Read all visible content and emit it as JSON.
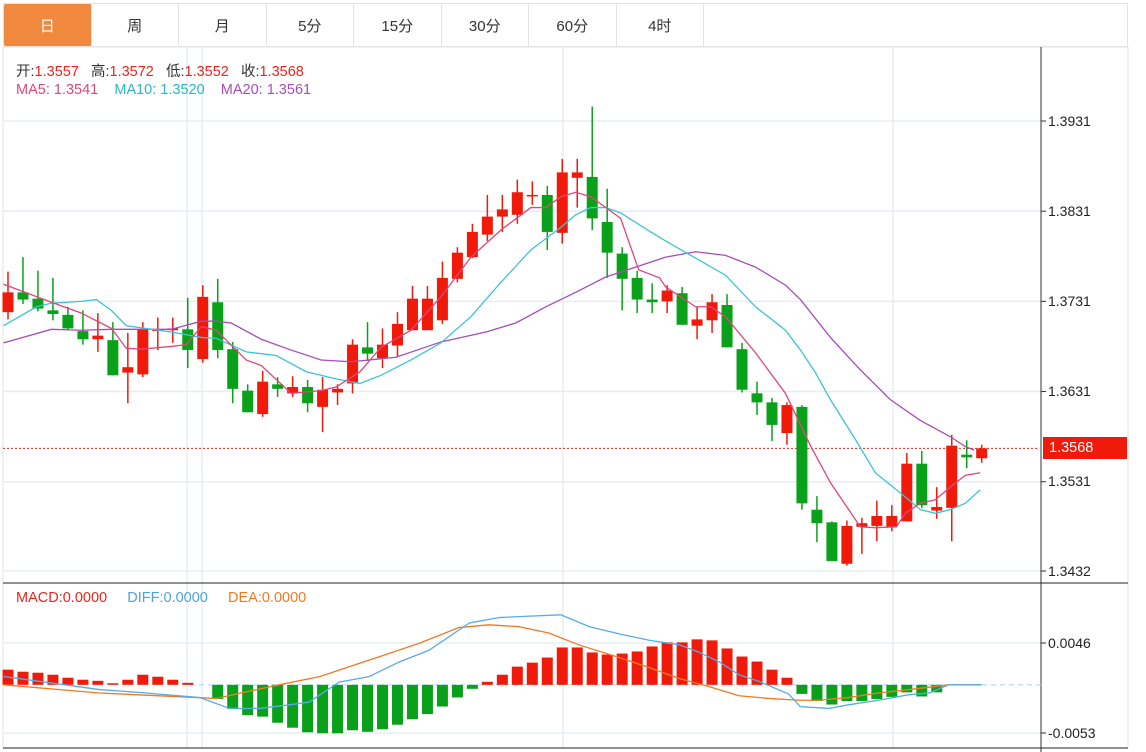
{
  "tabs": [
    {
      "label": "日",
      "active": true
    },
    {
      "label": "周"
    },
    {
      "label": "月"
    },
    {
      "label": "5分"
    },
    {
      "label": "15分"
    },
    {
      "label": "30分"
    },
    {
      "label": "60分"
    },
    {
      "label": "4时"
    }
  ],
  "ohlc_legend": {
    "open_label": "开:",
    "open": "1.3557",
    "high_label": "高:",
    "high": "1.3572",
    "low_label": "低:",
    "low": "1.3552",
    "close_label": "收:",
    "close": "1.3568"
  },
  "ma_legend": {
    "ma5_label": "MA5: ",
    "ma5": "1.3541",
    "ma10_label": "MA10: ",
    "ma10": "1.3520",
    "ma20_label": "MA20: ",
    "ma20": "1.3561"
  },
  "macd_legend": {
    "macd_label": "MACD:",
    "macd": "0.0000",
    "diff_label": "DIFF:",
    "diff": "0.0000",
    "dea_label": "DEA:",
    "dea": "0.0000"
  },
  "price_axis": [
    "1.3931",
    "1.3831",
    "1.3731",
    "1.3631",
    "1.3531",
    "1.3432"
  ],
  "macd_axis": [
    "0.0046",
    "-0.0053"
  ],
  "current_price": "1.3568",
  "colors": {
    "up": "#f01a0a",
    "down": "#0aa11a",
    "ma5": "#e0457b",
    "ma10": "#3cc4d6",
    "ma20": "#a64db9",
    "diff": "#5aaae6",
    "dea": "#f07a22",
    "accent": "#f0883e"
  },
  "chart_data": {
    "type": "candlestick",
    "price_range": [
      1.3432,
      1.3931
    ],
    "candles": [
      [
        1.3719,
        1.3764,
        1.3711,
        1.3741
      ],
      [
        1.3741,
        1.378,
        1.3728,
        1.3733
      ],
      [
        1.3734,
        1.3765,
        1.372,
        1.3723
      ],
      [
        1.3721,
        1.3757,
        1.371,
        1.3717
      ],
      [
        1.3716,
        1.3725,
        1.3699,
        1.3701
      ],
      [
        1.3698,
        1.3721,
        1.3683,
        1.3689
      ],
      [
        1.3689,
        1.3718,
        1.3675,
        1.3693
      ],
      [
        1.3688,
        1.3708,
        1.3649,
        1.3649
      ],
      [
        1.3652,
        1.3696,
        1.3618,
        1.3658
      ],
      [
        1.365,
        1.3708,
        1.3647,
        1.37
      ],
      [
        1.3698,
        1.3713,
        1.3677,
        1.37
      ],
      [
        1.3699,
        1.3713,
        1.3685,
        1.3701
      ],
      [
        1.37,
        1.3735,
        1.3657,
        1.3677
      ],
      [
        1.3667,
        1.3749,
        1.3663,
        1.3736
      ],
      [
        1.373,
        1.3756,
        1.3668,
        1.3677
      ],
      [
        1.3678,
        1.3686,
        1.3618,
        1.3634
      ],
      [
        1.3632,
        1.3639,
        1.3608,
        1.3608
      ],
      [
        1.3606,
        1.3654,
        1.3603,
        1.3642
      ],
      [
        1.3639,
        1.3647,
        1.3625,
        1.3634
      ],
      [
        1.3629,
        1.3648,
        1.3625,
        1.3636
      ],
      [
        1.3636,
        1.3644,
        1.3608,
        1.3618
      ],
      [
        1.3614,
        1.3647,
        1.3586,
        1.3633
      ],
      [
        1.363,
        1.3639,
        1.3616,
        1.3634
      ],
      [
        1.364,
        1.3689,
        1.3629,
        1.3683
      ],
      [
        1.368,
        1.3708,
        1.3665,
        1.3673
      ],
      [
        1.3668,
        1.3701,
        1.3657,
        1.3683
      ],
      [
        1.3682,
        1.3719,
        1.367,
        1.3706
      ],
      [
        1.3699,
        1.3748,
        1.3699,
        1.3734
      ],
      [
        1.3699,
        1.3748,
        1.3699,
        1.3734
      ],
      [
        1.371,
        1.3775,
        1.3706,
        1.3757
      ],
      [
        1.3756,
        1.3791,
        1.3752,
        1.3785
      ],
      [
        1.378,
        1.3817,
        1.3779,
        1.3808
      ],
      [
        1.3805,
        1.3849,
        1.3798,
        1.3825
      ],
      [
        1.3825,
        1.3849,
        1.3808,
        1.3833
      ],
      [
        1.3827,
        1.3866,
        1.3817,
        1.3852
      ],
      [
        1.3848,
        1.3864,
        1.3838,
        1.3849
      ],
      [
        1.3849,
        1.3859,
        1.3788,
        1.3808
      ],
      [
        1.3807,
        1.3889,
        1.3795,
        1.3874
      ],
      [
        1.3868,
        1.3889,
        1.3835,
        1.3874
      ],
      [
        1.3869,
        1.3947,
        1.381,
        1.3823
      ],
      [
        1.3819,
        1.3856,
        1.3757,
        1.3785
      ],
      [
        1.3784,
        1.3791,
        1.3721,
        1.3756
      ],
      [
        1.3757,
        1.3765,
        1.3718,
        1.3733
      ],
      [
        1.3733,
        1.3751,
        1.3718,
        1.373
      ],
      [
        1.3731,
        1.3749,
        1.3718,
        1.3743
      ],
      [
        1.374,
        1.3747,
        1.3705,
        1.3705
      ],
      [
        1.3704,
        1.3725,
        1.3689,
        1.3711
      ],
      [
        1.371,
        1.3739,
        1.3696,
        1.373
      ],
      [
        1.3727,
        1.3739,
        1.368,
        1.368
      ],
      [
        1.3678,
        1.3685,
        1.363,
        1.3633
      ],
      [
        1.3629,
        1.3642,
        1.3605,
        1.3619
      ],
      [
        1.3619,
        1.3624,
        1.3576,
        1.3594
      ],
      [
        1.3585,
        1.3619,
        1.3572,
        1.3616
      ],
      [
        1.3614,
        1.3616,
        1.35,
        1.3507
      ],
      [
        1.35,
        1.3515,
        1.3464,
        1.3485
      ],
      [
        1.3486,
        1.3487,
        1.3443,
        1.3443
      ],
      [
        1.344,
        1.3488,
        1.3438,
        1.3482
      ],
      [
        1.3481,
        1.3491,
        1.3451,
        1.3485
      ],
      [
        1.3482,
        1.351,
        1.3465,
        1.3493
      ],
      [
        1.3481,
        1.3505,
        1.3476,
        1.3493
      ],
      [
        1.3487,
        1.3563,
        1.3487,
        1.3551
      ],
      [
        1.3551,
        1.3565,
        1.3502,
        1.3505
      ],
      [
        1.3499,
        1.3525,
        1.349,
        1.3503
      ],
      [
        1.3502,
        1.3583,
        1.3465,
        1.3571
      ],
      [
        1.3561,
        1.3577,
        1.3546,
        1.3558
      ],
      [
        1.3557,
        1.3572,
        1.3552,
        1.3568
      ]
    ],
    "ma5": [
      [
        -0.3,
        1.375
      ],
      [
        2.9,
        1.373
      ],
      [
        4.9,
        1.3718
      ],
      [
        6.9,
        1.3701
      ],
      [
        7.9,
        1.3679
      ],
      [
        8.9,
        1.3678
      ],
      [
        10.9,
        1.3681
      ],
      [
        11.9,
        1.3683
      ],
      [
        12.9,
        1.3703
      ],
      [
        13.9,
        1.3699
      ],
      [
        15.9,
        1.3666
      ],
      [
        16.9,
        1.366
      ],
      [
        18.9,
        1.3629
      ],
      [
        20.9,
        1.3632
      ],
      [
        21.9,
        1.3636
      ],
      [
        23.5,
        1.3653
      ],
      [
        24.9,
        1.368
      ],
      [
        26.9,
        1.3699
      ],
      [
        28.9,
        1.3736
      ],
      [
        30.9,
        1.378
      ],
      [
        32.9,
        1.381
      ],
      [
        34.9,
        1.3835
      ],
      [
        35.9,
        1.3835
      ],
      [
        36.9,
        1.3847
      ],
      [
        37.9,
        1.3852
      ],
      [
        38.9,
        1.3847
      ],
      [
        40.9,
        1.3823
      ],
      [
        42.1,
        1.3766
      ],
      [
        43.5,
        1.3757
      ],
      [
        43.9,
        1.3747
      ],
      [
        45.9,
        1.3725
      ],
      [
        46.9,
        1.3725
      ],
      [
        47.9,
        1.3714
      ],
      [
        49.9,
        1.3674
      ],
      [
        51.9,
        1.3629
      ],
      [
        53.6,
        1.357
      ],
      [
        54.9,
        1.353
      ],
      [
        56.9,
        1.3481
      ],
      [
        57.9,
        1.348
      ],
      [
        59.3,
        1.3481
      ],
      [
        59.9,
        1.3496
      ],
      [
        60.9,
        1.3507
      ],
      [
        61.9,
        1.3511
      ],
      [
        62.9,
        1.3525
      ],
      [
        63.9,
        1.3538
      ],
      [
        64.9,
        1.3541
      ]
    ],
    "ma10": [
      [
        -0.3,
        1.3704
      ],
      [
        1.9,
        1.3725
      ],
      [
        2.9,
        1.3729
      ],
      [
        4.9,
        1.3731
      ],
      [
        5.9,
        1.3733
      ],
      [
        6.9,
        1.3721
      ],
      [
        7.9,
        1.3704
      ],
      [
        10.9,
        1.3697
      ],
      [
        12.9,
        1.3691
      ],
      [
        13.9,
        1.369
      ],
      [
        15.9,
        1.3675
      ],
      [
        17.9,
        1.3671
      ],
      [
        19.9,
        1.3653
      ],
      [
        21.9,
        1.3645
      ],
      [
        23.5,
        1.364
      ],
      [
        24.9,
        1.3649
      ],
      [
        26.9,
        1.3666
      ],
      [
        28.9,
        1.3685
      ],
      [
        30.9,
        1.3714
      ],
      [
        32.9,
        1.3752
      ],
      [
        34.9,
        1.3788
      ],
      [
        36.9,
        1.3813
      ],
      [
        37.9,
        1.3827
      ],
      [
        38.9,
        1.3835
      ],
      [
        39.9,
        1.3835
      ],
      [
        40.9,
        1.3829
      ],
      [
        42.9,
        1.3808
      ],
      [
        44.1,
        1.3796
      ],
      [
        45.9,
        1.3779
      ],
      [
        47.9,
        1.376
      ],
      [
        49.9,
        1.3725
      ],
      [
        51.9,
        1.3699
      ],
      [
        52.9,
        1.3677
      ],
      [
        53.9,
        1.3652
      ],
      [
        54.9,
        1.3622
      ],
      [
        56.6,
        1.3577
      ],
      [
        57.9,
        1.3541
      ],
      [
        59.9,
        1.3514
      ],
      [
        60.9,
        1.35
      ],
      [
        61.9,
        1.3496
      ],
      [
        62.9,
        1.35
      ],
      [
        63.9,
        1.3507
      ],
      [
        64.9,
        1.3522
      ]
    ],
    "ma20": [
      [
        -0.3,
        1.3685
      ],
      [
        2.9,
        1.37
      ],
      [
        4.9,
        1.3699
      ],
      [
        6.9,
        1.37
      ],
      [
        10.9,
        1.37
      ],
      [
        12.9,
        1.3709
      ],
      [
        13.9,
        1.3709
      ],
      [
        14.9,
        1.3707
      ],
      [
        16.9,
        1.3689
      ],
      [
        18.9,
        1.3677
      ],
      [
        20.9,
        1.3666
      ],
      [
        22.9,
        1.3664
      ],
      [
        25.9,
        1.3669
      ],
      [
        28.9,
        1.3686
      ],
      [
        31.9,
        1.3697
      ],
      [
        33.9,
        1.3707
      ],
      [
        35.9,
        1.3725
      ],
      [
        37.9,
        1.3741
      ],
      [
        39.9,
        1.3758
      ],
      [
        41.9,
        1.3769
      ],
      [
        43.9,
        1.378
      ],
      [
        45.9,
        1.3786
      ],
      [
        47.9,
        1.3782
      ],
      [
        49.9,
        1.3769
      ],
      [
        51.9,
        1.3749
      ],
      [
        52.9,
        1.3733
      ],
      [
        54.9,
        1.3691
      ],
      [
        56.9,
        1.3655
      ],
      [
        58.9,
        1.3622
      ],
      [
        60.9,
        1.3599
      ],
      [
        62.9,
        1.3581
      ],
      [
        63.9,
        1.357
      ],
      [
        64.5,
        1.3566
      ]
    ],
    "macd_range": [
      -0.0053,
      0.0046
    ],
    "macd_hist": [
      0.00167,
      0.00144,
      0.00133,
      0.00111,
      0.00078,
      0.00056,
      0.00044,
      0.00017,
      0.00056,
      0.00111,
      0.00089,
      0.00056,
      0.00022,
      0,
      -0.00156,
      -0.00267,
      -0.00333,
      -0.0035,
      -0.00417,
      -0.00472,
      -0.00522,
      -0.00533,
      -0.00533,
      -0.005,
      -0.00517,
      -0.00489,
      -0.00439,
      -0.00378,
      -0.00322,
      -0.00239,
      -0.00139,
      -0.00044,
      0.00033,
      0.00111,
      0.002,
      0.00244,
      0.003,
      0.00411,
      0.00411,
      0.00356,
      0.00333,
      0.00344,
      0.00367,
      0.00422,
      0.00467,
      0.00467,
      0.005,
      0.00489,
      0.004,
      0.00311,
      0.00256,
      0.00167,
      0.00078,
      -0.001,
      -0.00178,
      -0.00217,
      -0.00178,
      -0.00178,
      -0.00156,
      -0.00133,
      -0.00083,
      -0.00128,
      -0.00083,
      0,
      0,
      0
    ],
    "diff": [
      [
        -0.3,
        0.00092
      ],
      [
        6.1,
        -0.00052
      ],
      [
        8.9,
        -0.00086
      ],
      [
        12.8,
        -0.0014
      ],
      [
        14.8,
        -0.0026
      ],
      [
        16.8,
        -0.0026
      ],
      [
        18.8,
        -0.0022
      ],
      [
        20.1,
        -0.0019
      ],
      [
        22.1,
        0.0003
      ],
      [
        24.1,
        0.0009
      ],
      [
        26.1,
        0.0025
      ],
      [
        28.1,
        0.0038
      ],
      [
        30.8,
        0.0068
      ],
      [
        32.8,
        0.0074
      ],
      [
        34.1,
        0.0075
      ],
      [
        36.9,
        0.0077
      ],
      [
        38.8,
        0.0064
      ],
      [
        40.8,
        0.0056
      ],
      [
        42.8,
        0.0049
      ],
      [
        44.8,
        0.0044
      ],
      [
        46.1,
        0.0036
      ],
      [
        47.5,
        0.0025
      ],
      [
        48.8,
        0.0011
      ],
      [
        50.1,
        0.0004
      ],
      [
        52.1,
        -0.001
      ],
      [
        52.9,
        -0.0024
      ],
      [
        54.8,
        -0.0026
      ],
      [
        56.1,
        -0.0022
      ],
      [
        58.1,
        -0.0017
      ],
      [
        60.1,
        -0.0011
      ],
      [
        61.5,
        -0.0009
      ],
      [
        62.8,
        0
      ],
      [
        65,
        0
      ]
    ],
    "dea": [
      [
        -0.3,
        0
      ],
      [
        6.1,
        -0.0009
      ],
      [
        13.9,
        -0.0015
      ],
      [
        16.1,
        -0.0007
      ],
      [
        18.1,
        0
      ],
      [
        20.8,
        0.0009
      ],
      [
        22.8,
        0.002
      ],
      [
        24.8,
        0.0031
      ],
      [
        27.5,
        0.0046
      ],
      [
        30.1,
        0.0063
      ],
      [
        32.1,
        0.0066
      ],
      [
        34.1,
        0.0064
      ],
      [
        36.1,
        0.0057
      ],
      [
        38.1,
        0.0044
      ],
      [
        40.8,
        0.003
      ],
      [
        42.8,
        0.0019
      ],
      [
        44.8,
        0.0007
      ],
      [
        46.8,
        -0.0002
      ],
      [
        48.8,
        -0.0012
      ],
      [
        50.8,
        -0.0015
      ],
      [
        52.8,
        -0.0017
      ],
      [
        54.1,
        -0.0017
      ],
      [
        56.1,
        -0.0014
      ],
      [
        58.1,
        -0.0009
      ],
      [
        60.8,
        -0.0004
      ],
      [
        62.8,
        0
      ],
      [
        65,
        0
      ]
    ]
  }
}
